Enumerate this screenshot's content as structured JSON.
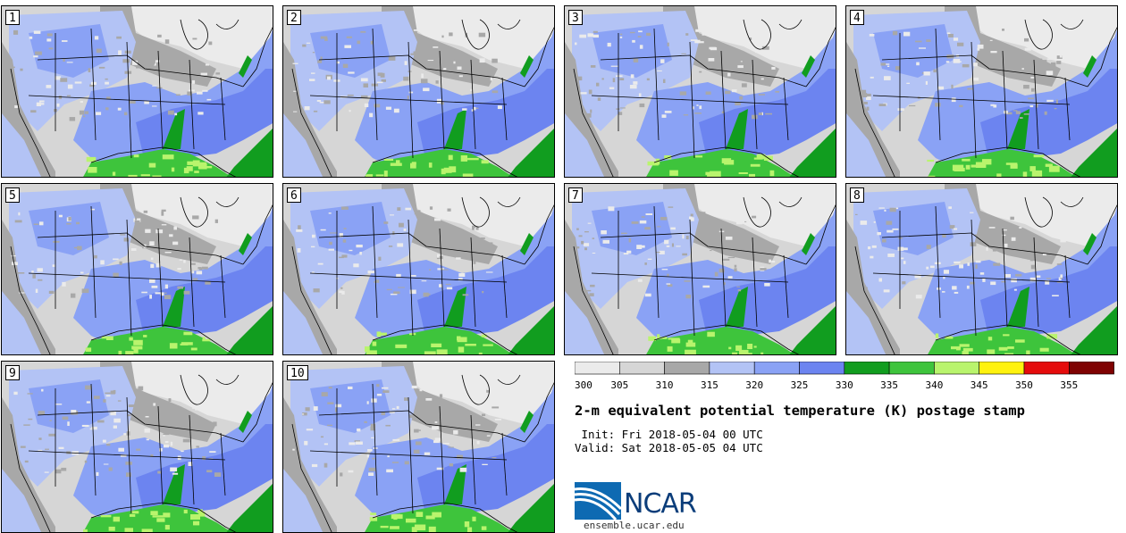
{
  "panels": [
    {
      "label": "1"
    },
    {
      "label": "2"
    },
    {
      "label": "3"
    },
    {
      "label": "4"
    },
    {
      "label": "5"
    },
    {
      "label": "6"
    },
    {
      "label": "7"
    },
    {
      "label": "8"
    },
    {
      "label": "9"
    },
    {
      "label": "10"
    }
  ],
  "colorbar": {
    "colors": [
      "#ebebeb",
      "#d6d6d6",
      "#a8a8a8",
      "#b3c3f5",
      "#8aa2f5",
      "#6c84f0",
      "#119d1f",
      "#3ec43c",
      "#b9f46d",
      "#fff20e",
      "#e50c0c",
      "#7f0202"
    ],
    "ticks": [
      "300",
      "305",
      "310",
      "315",
      "320",
      "325",
      "330",
      "335",
      "340",
      "345",
      "350",
      "355"
    ]
  },
  "title": "2-m equivalent potential temperature (K) postage stamp",
  "init": " Init: Fri 2018-05-04 00 UTC",
  "valid": "Valid: Sat 2018-05-05 04 UTC",
  "logo": {
    "text": "NCAR",
    "colors": [
      "#0e6ab2",
      "#ffffff"
    ]
  },
  "site": "ensemble.ucar.edu"
}
